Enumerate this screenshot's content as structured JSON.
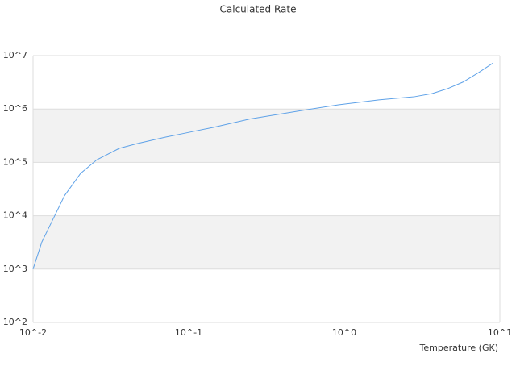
{
  "chart_data": {
    "type": "line",
    "title": "Calculated Rate",
    "x_label": "Temperature (GK)",
    "x": [
      0.01,
      0.0114,
      0.0128,
      0.0159,
      0.0202,
      0.0257,
      0.0358,
      0.0466,
      0.0707,
      0.0952,
      0.145,
      0.247,
      0.536,
      0.917,
      1.67,
      2.83,
      3.68,
      4.6,
      5.8,
      7.3,
      9.0
    ],
    "series": [
      {
        "color": "#5fa2e8",
        "values": [
          1000,
          3240,
          6460,
          23600,
          62000,
          112000,
          183000,
          225000,
          297000,
          354000,
          455000,
          650000,
          940000,
          1200000,
          1480000,
          1700000,
          1950000,
          2400000,
          3200000,
          4800000,
          7200000
        ]
      }
    ],
    "x_log": true,
    "y_log": true,
    "xlim": [
      0.01,
      10
    ],
    "ylim": [
      100,
      10000000
    ],
    "xticks": [
      {
        "value": 0.01,
        "label": "10^-2"
      },
      {
        "value": 0.1,
        "label": "10^-1"
      },
      {
        "value": 1,
        "label": "10^0"
      },
      {
        "value": 10,
        "label": "10^1"
      }
    ],
    "yticks": [
      {
        "value": 100,
        "label": "10^2"
      },
      {
        "value": 1000,
        "label": "10^3"
      },
      {
        "value": 10000,
        "label": "10^4"
      },
      {
        "value": 100000,
        "label": "10^5"
      },
      {
        "value": 1000000,
        "label": "10^6"
      },
      {
        "value": 10000000,
        "label": "10^7"
      }
    ],
    "grid": true,
    "band_color": "#f2f2f2"
  }
}
